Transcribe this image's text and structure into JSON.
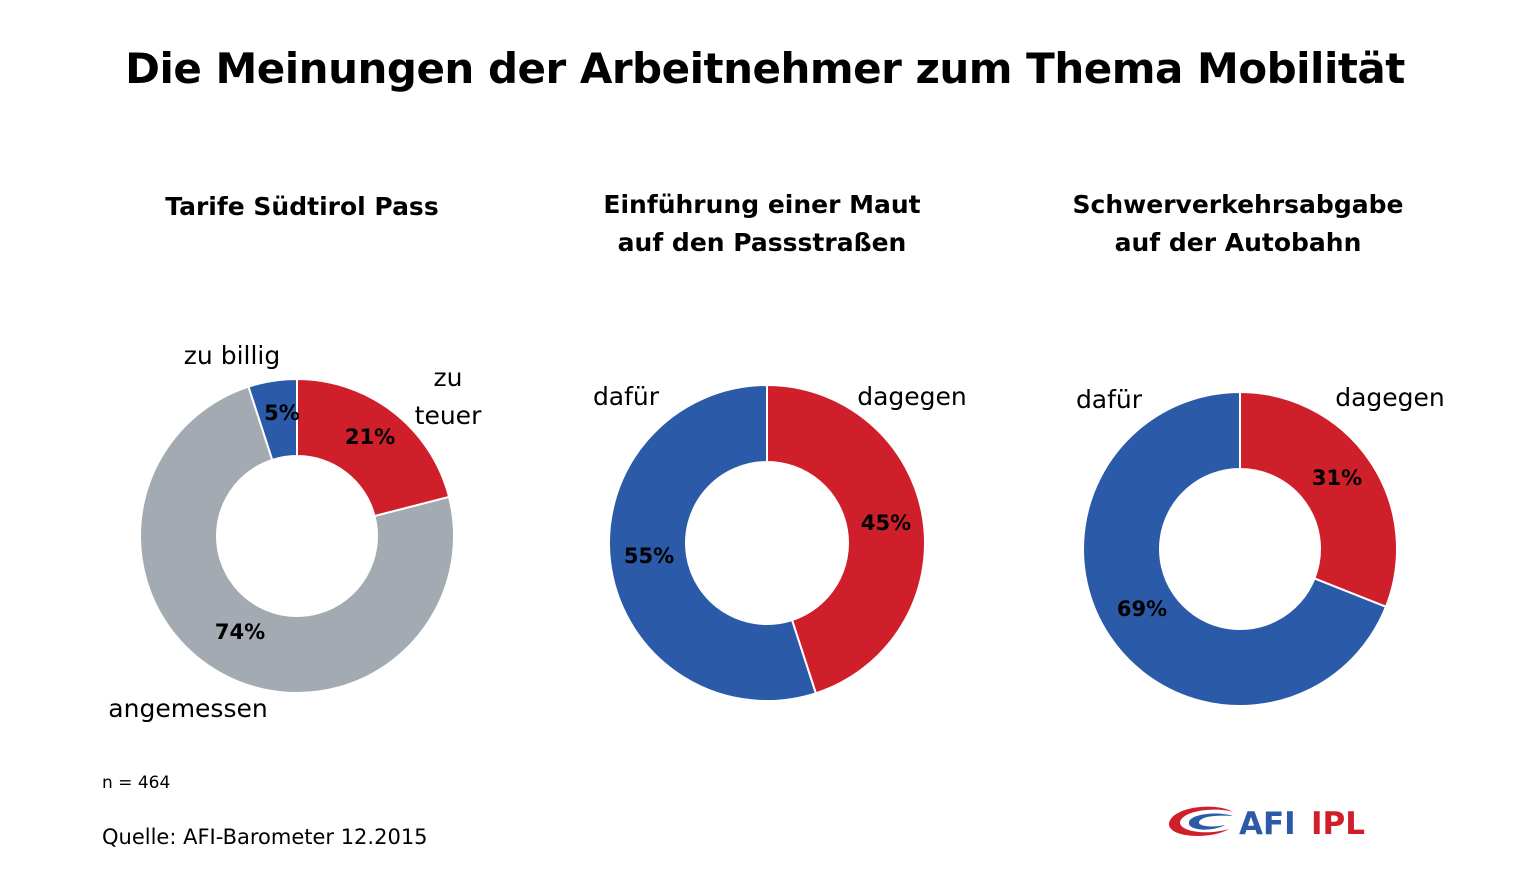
{
  "title": "Die Meinungen der Arbeitnehmer zum Thema Mobilität",
  "colors": {
    "red": "#CF1F2A",
    "blue": "#2B5BA8",
    "grey": "#A3AAB2"
  },
  "chart_data": [
    {
      "type": "pie",
      "title_lines": [
        "Tarife Südtirol Pass"
      ],
      "slices": [
        {
          "label": "zu teuer",
          "value": 21,
          "value_label": "21%",
          "color": "#CF1F2A"
        },
        {
          "label": "angemessen",
          "value": 74,
          "value_label": "74%",
          "color": "#A3AAB2"
        },
        {
          "label": "zu billig",
          "value": 5,
          "value_label": "5%",
          "color": "#2B5BA8"
        }
      ]
    },
    {
      "type": "pie",
      "title_lines": [
        "Einführung einer Maut",
        "auf den Passstraßen"
      ],
      "slices": [
        {
          "label": "dagegen",
          "value": 45,
          "value_label": "45%",
          "color": "#CF1F2A"
        },
        {
          "label": "dafür",
          "value": 55,
          "value_label": "55%",
          "color": "#2B5BA8"
        }
      ]
    },
    {
      "type": "pie",
      "title_lines": [
        "Schwerverkehrsabgabe",
        "auf der Autobahn"
      ],
      "slices": [
        {
          "label": "dagegen",
          "value": 31,
          "value_label": "31%",
          "color": "#CF1F2A"
        },
        {
          "label": "dafür",
          "value": 69,
          "value_label": "69%",
          "color": "#2B5BA8"
        }
      ]
    }
  ],
  "footnote": "n = 464",
  "source": "Quelle: AFI-Barometer 12.2015",
  "logo": {
    "text_afi": "AFI",
    "text_ipl": "IPL",
    "icon": "afi-ipl-swoosh-icon"
  }
}
